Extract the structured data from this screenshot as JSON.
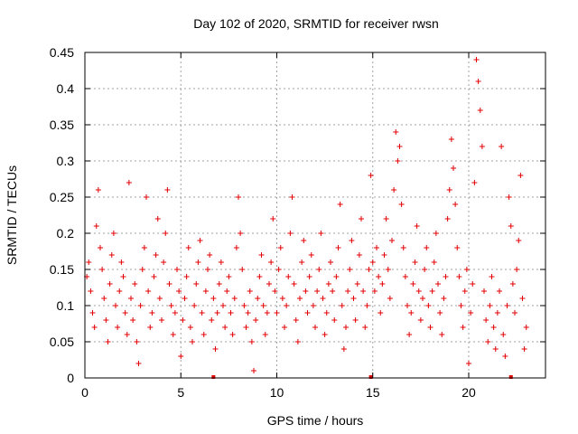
{
  "chart_data": {
    "type": "scatter",
    "title": "Day 102 of 2020, SRMTID for receiver rwsn",
    "xlabel": "GPS time / hours",
    "ylabel": "SRMTID / TECUs",
    "xlim": [
      0,
      24
    ],
    "ylim": [
      0,
      0.45
    ],
    "xticks": [
      "0",
      "5",
      "10",
      "15",
      "20"
    ],
    "yticks": [
      "0",
      "0.05",
      "0.1",
      "0.15",
      "0.2",
      "0.25",
      "0.3",
      "0.35",
      "0.4",
      "0.45"
    ],
    "grid": true,
    "marker": "plus",
    "color": "#e00000",
    "series": [
      {
        "points": [
          [
            0.1,
            0.14
          ],
          [
            0.2,
            0.16
          ],
          [
            0.3,
            0.12
          ],
          [
            0.4,
            0.09
          ],
          [
            0.5,
            0.07
          ],
          [
            0.6,
            0.21
          ],
          [
            0.7,
            0.26
          ],
          [
            0.8,
            0.18
          ],
          [
            0.9,
            0.15
          ],
          [
            1.0,
            0.11
          ],
          [
            1.1,
            0.08
          ],
          [
            1.2,
            0.05
          ],
          [
            1.3,
            0.13
          ],
          [
            1.4,
            0.17
          ],
          [
            1.5,
            0.2
          ],
          [
            1.6,
            0.1
          ],
          [
            1.7,
            0.07
          ],
          [
            1.8,
            0.12
          ],
          [
            1.9,
            0.16
          ],
          [
            2.0,
            0.14
          ],
          [
            2.1,
            0.09
          ],
          [
            2.2,
            0.06
          ],
          [
            2.3,
            0.27
          ],
          [
            2.4,
            0.11
          ],
          [
            2.5,
            0.08
          ],
          [
            2.6,
            0.13
          ],
          [
            2.7,
            0.05
          ],
          [
            2.8,
            0.02
          ],
          [
            2.9,
            0.1
          ],
          [
            3.0,
            0.15
          ],
          [
            3.1,
            0.18
          ],
          [
            3.2,
            0.25
          ],
          [
            3.3,
            0.12
          ],
          [
            3.4,
            0.07
          ],
          [
            3.5,
            0.09
          ],
          [
            3.6,
            0.14
          ],
          [
            3.7,
            0.17
          ],
          [
            3.8,
            0.22
          ],
          [
            3.9,
            0.11
          ],
          [
            4.0,
            0.08
          ],
          [
            4.1,
            0.16
          ],
          [
            4.2,
            0.2
          ],
          [
            4.3,
            0.26
          ],
          [
            4.4,
            0.13
          ],
          [
            4.5,
            0.1
          ],
          [
            4.6,
            0.06
          ],
          [
            4.7,
            0.09
          ],
          [
            4.8,
            0.15
          ],
          [
            4.9,
            0.12
          ],
          [
            5.0,
            0.03
          ],
          [
            5.1,
            0.08
          ],
          [
            5.2,
            0.11
          ],
          [
            5.3,
            0.14
          ],
          [
            5.4,
            0.18
          ],
          [
            5.5,
            0.07
          ],
          [
            5.6,
            0.05
          ],
          [
            5.7,
            0.1
          ],
          [
            5.8,
            0.13
          ],
          [
            5.9,
            0.16
          ],
          [
            6.0,
            0.19
          ],
          [
            6.1,
            0.09
          ],
          [
            6.2,
            0.06
          ],
          [
            6.3,
            0.12
          ],
          [
            6.4,
            0.15
          ],
          [
            6.5,
            0.17
          ],
          [
            6.6,
            0.08
          ],
          [
            6.7,
            0.11
          ],
          [
            6.8,
            0.04
          ],
          [
            6.9,
            0.09
          ],
          [
            7.0,
            0.13
          ],
          [
            7.1,
            0.16
          ],
          [
            7.2,
            0.1
          ],
          [
            7.3,
            0.07
          ],
          [
            7.4,
            0.12
          ],
          [
            7.5,
            0.14
          ],
          [
            7.6,
            0.09
          ],
          [
            7.7,
            0.06
          ],
          [
            7.8,
            0.11
          ],
          [
            7.9,
            0.18
          ],
          [
            8.0,
            0.25
          ],
          [
            8.1,
            0.2
          ],
          [
            8.2,
            0.15
          ],
          [
            8.3,
            0.1
          ],
          [
            8.4,
            0.07
          ],
          [
            8.5,
            0.09
          ],
          [
            8.6,
            0.12
          ],
          [
            8.7,
            0.05
          ],
          [
            8.8,
            0.01
          ],
          [
            8.9,
            0.08
          ],
          [
            9.0,
            0.11
          ],
          [
            9.1,
            0.14
          ],
          [
            9.2,
            0.17
          ],
          [
            9.3,
            0.1
          ],
          [
            9.4,
            0.06
          ],
          [
            9.5,
            0.09
          ],
          [
            9.6,
            0.13
          ],
          [
            9.7,
            0.16
          ],
          [
            9.8,
            0.22
          ],
          [
            9.9,
            0.12
          ],
          [
            10.0,
            0.09
          ],
          [
            10.1,
            0.15
          ],
          [
            10.2,
            0.18
          ],
          [
            10.3,
            0.11
          ],
          [
            10.4,
            0.07
          ],
          [
            10.5,
            0.1
          ],
          [
            10.6,
            0.14
          ],
          [
            10.7,
            0.2
          ],
          [
            10.8,
            0.25
          ],
          [
            10.9,
            0.13
          ],
          [
            11.0,
            0.08
          ],
          [
            11.1,
            0.05
          ],
          [
            11.2,
            0.11
          ],
          [
            11.3,
            0.16
          ],
          [
            11.4,
            0.19
          ],
          [
            11.5,
            0.12
          ],
          [
            11.6,
            0.09
          ],
          [
            11.7,
            0.14
          ],
          [
            11.8,
            0.17
          ],
          [
            11.9,
            0.1
          ],
          [
            12.0,
            0.07
          ],
          [
            12.1,
            0.12
          ],
          [
            12.2,
            0.15
          ],
          [
            12.3,
            0.2
          ],
          [
            12.4,
            0.11
          ],
          [
            12.5,
            0.06
          ],
          [
            12.6,
            0.09
          ],
          [
            12.7,
            0.13
          ],
          [
            12.8,
            0.16
          ],
          [
            12.9,
            0.12
          ],
          [
            13.0,
            0.08
          ],
          [
            13.1,
            0.14
          ],
          [
            13.2,
            0.18
          ],
          [
            13.3,
            0.24
          ],
          [
            13.4,
            0.1
          ],
          [
            13.5,
            0.04
          ],
          [
            13.6,
            0.07
          ],
          [
            13.7,
            0.12
          ],
          [
            13.8,
            0.15
          ],
          [
            13.9,
            0.19
          ],
          [
            14.0,
            0.11
          ],
          [
            14.1,
            0.08
          ],
          [
            14.2,
            0.13
          ],
          [
            14.3,
            0.17
          ],
          [
            14.4,
            0.22
          ],
          [
            14.5,
            0.12
          ],
          [
            14.6,
            0.07
          ],
          [
            14.7,
            0.1
          ],
          [
            14.8,
            0.15
          ],
          [
            14.9,
            0.28
          ],
          [
            15.0,
            0.16
          ],
          [
            15.1,
            0.12
          ],
          [
            15.2,
            0.18
          ],
          [
            15.3,
            0.14
          ],
          [
            15.4,
            0.09
          ],
          [
            15.5,
            0.13
          ],
          [
            15.6,
            0.17
          ],
          [
            15.7,
            0.22
          ],
          [
            15.8,
            0.15
          ],
          [
            15.9,
            0.11
          ],
          [
            16.0,
            0.19
          ],
          [
            16.1,
            0.26
          ],
          [
            16.2,
            0.34
          ],
          [
            16.3,
            0.3
          ],
          [
            16.4,
            0.32
          ],
          [
            16.5,
            0.24
          ],
          [
            16.6,
            0.18
          ],
          [
            16.7,
            0.14
          ],
          [
            16.8,
            0.1
          ],
          [
            16.9,
            0.06
          ],
          [
            17.0,
            0.09
          ],
          [
            17.1,
            0.13
          ],
          [
            17.2,
            0.16
          ],
          [
            17.3,
            0.21
          ],
          [
            17.4,
            0.12
          ],
          [
            17.5,
            0.08
          ],
          [
            17.6,
            0.11
          ],
          [
            17.7,
            0.15
          ],
          [
            17.8,
            0.18
          ],
          [
            17.9,
            0.1
          ],
          [
            18.0,
            0.07
          ],
          [
            18.1,
            0.12
          ],
          [
            18.2,
            0.16
          ],
          [
            18.3,
            0.2
          ],
          [
            18.4,
            0.13
          ],
          [
            18.5,
            0.09
          ],
          [
            18.6,
            0.06
          ],
          [
            18.7,
            0.11
          ],
          [
            18.8,
            0.14
          ],
          [
            18.9,
            0.22
          ],
          [
            19.0,
            0.26
          ],
          [
            19.1,
            0.33
          ],
          [
            19.2,
            0.29
          ],
          [
            19.3,
            0.24
          ],
          [
            19.4,
            0.18
          ],
          [
            19.5,
            0.14
          ],
          [
            19.6,
            0.1
          ],
          [
            19.7,
            0.07
          ],
          [
            19.8,
            0.12
          ],
          [
            19.9,
            0.15
          ],
          [
            20.0,
            0.02
          ],
          [
            20.1,
            0.09
          ],
          [
            20.2,
            0.13
          ],
          [
            20.3,
            0.27
          ],
          [
            20.4,
            0.44
          ],
          [
            20.5,
            0.41
          ],
          [
            20.6,
            0.37
          ],
          [
            20.7,
            0.32
          ],
          [
            20.8,
            0.12
          ],
          [
            20.9,
            0.08
          ],
          [
            21.0,
            0.05
          ],
          [
            21.1,
            0.1
          ],
          [
            21.2,
            0.14
          ],
          [
            21.3,
            0.07
          ],
          [
            21.4,
            0.04
          ],
          [
            21.5,
            0.09
          ],
          [
            21.6,
            0.12
          ],
          [
            21.7,
            0.32
          ],
          [
            21.8,
            0.06
          ],
          [
            21.9,
            0.03
          ],
          [
            22.0,
            0.1
          ],
          [
            22.1,
            0.25
          ],
          [
            22.2,
            0.21
          ],
          [
            22.3,
            0.13
          ],
          [
            22.4,
            0.09
          ],
          [
            22.5,
            0.15
          ],
          [
            22.6,
            0.19
          ],
          [
            22.7,
            0.28
          ],
          [
            22.8,
            0.11
          ],
          [
            22.9,
            0.04
          ],
          [
            23.0,
            0.07
          ]
        ],
        "zero_markers": [
          6.7,
          14.9,
          22.2
        ]
      }
    ]
  }
}
